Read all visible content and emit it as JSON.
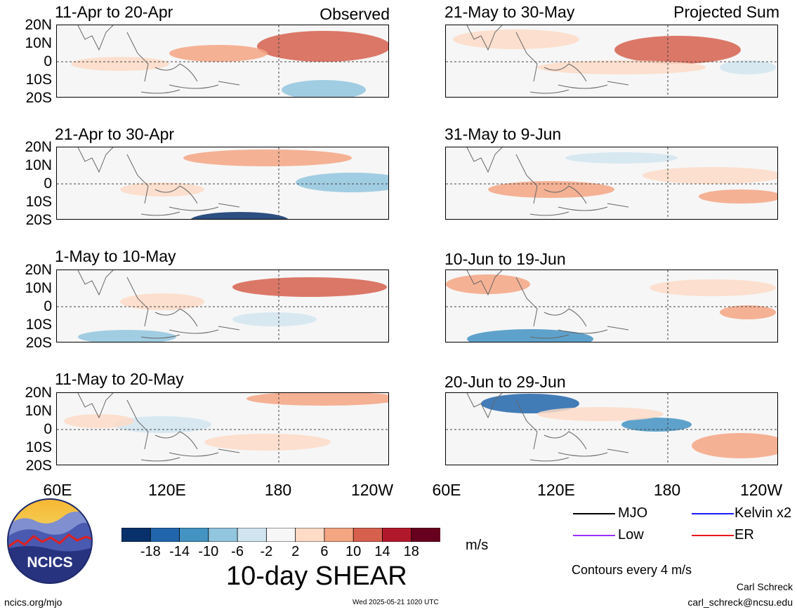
{
  "observed_label": "Observed",
  "projected_label": "Projected Sum",
  "panels_left": [
    {
      "title": "11-Apr to 20-Apr"
    },
    {
      "title": "21-Apr to 30-Apr"
    },
    {
      "title": "1-May to 10-May"
    },
    {
      "title": "11-May to 20-May"
    }
  ],
  "panels_right": [
    {
      "title": "21-May to 30-May"
    },
    {
      "title": "31-May to 9-Jun"
    },
    {
      "title": "10-Jun to 19-Jun"
    },
    {
      "title": "20-Jun to 29-Jun"
    }
  ],
  "lat_labels": [
    "20N",
    "10N",
    "0",
    "10S",
    "20S"
  ],
  "lon_labels": [
    "60E",
    "120E",
    "180",
    "120W"
  ],
  "colorbar": {
    "ticks": [
      "-18",
      "-14",
      "-10",
      "-6",
      "-2",
      "2",
      "6",
      "10",
      "14",
      "18"
    ],
    "colors": [
      "#08306b",
      "#2166ac",
      "#4393c3",
      "#92c5de",
      "#d1e5f0",
      "#f7f7f7",
      "#fddbc7",
      "#f4a582",
      "#d6604d",
      "#b2182b",
      "#67001f"
    ],
    "units": "m/s",
    "title": "10-day SHEAR"
  },
  "legend": {
    "mjo": "MJO",
    "kelvin": "Kelvin x2",
    "low": "Low",
    "er": "ER",
    "colors": {
      "mjo": "#000000",
      "kelvin": "#1a1aff",
      "low": "#9b30ff",
      "er": "#e8161e"
    }
  },
  "contours_note": "Contours every 4 m/s",
  "logo_text": "NCICS",
  "footer": {
    "url": "ncics.org/mjo",
    "timestamp": "Wed 2025-05-21 1020 UTC",
    "author": "Carl Schreck",
    "email": "carl_schreck@ncsu.edu"
  }
}
